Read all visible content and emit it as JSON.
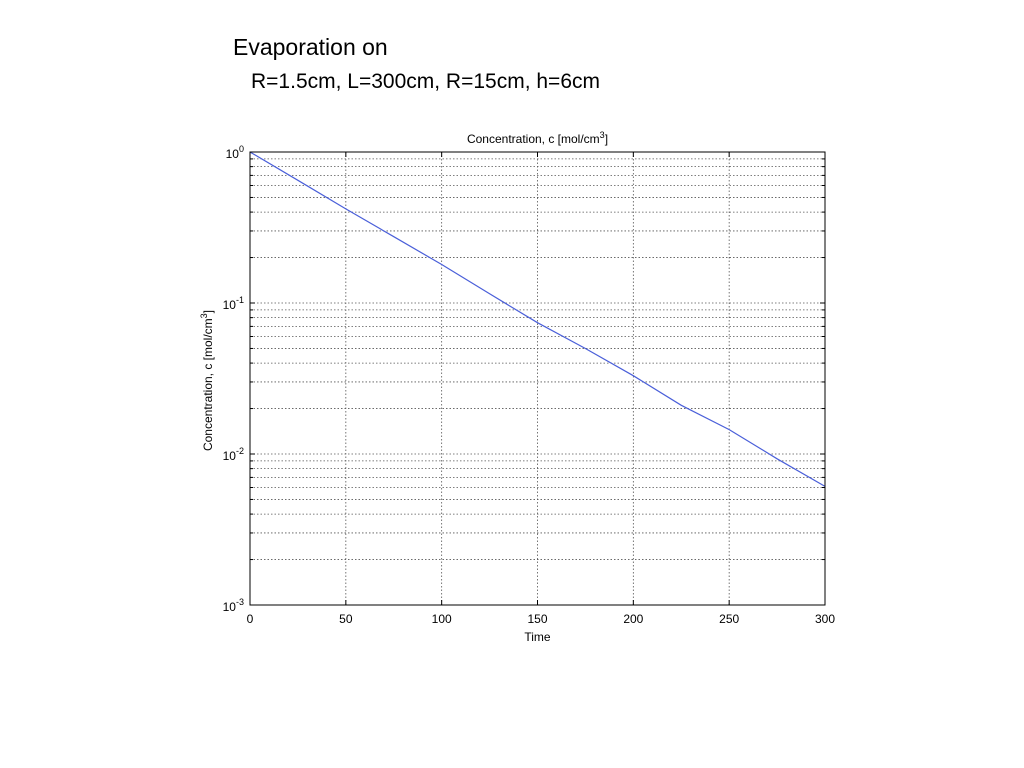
{
  "slide": {
    "title": "Evaporation on",
    "subtitle": "R=1.5cm, L=300cm, R=15cm, h=6cm"
  },
  "chart_data": {
    "type": "line",
    "title": "Concentration, c [mol/cm",
    "title_superscript": "3",
    "title_suffix": "]",
    "xlabel": "Time",
    "ylabel": "Concentration, c [mol/cm",
    "ylabel_superscript": "3",
    "ylabel_suffix": "]",
    "xlim": [
      0,
      300
    ],
    "ylim": [
      0.001,
      1
    ],
    "yscale": "log",
    "grid": true,
    "line_color": "#4a5fd9",
    "xticks": [
      0,
      50,
      100,
      150,
      200,
      250,
      300
    ],
    "yticks": [
      {
        "value": 1,
        "base": "10",
        "exp": "0"
      },
      {
        "value": 0.1,
        "base": "10",
        "exp": "-1"
      },
      {
        "value": 0.01,
        "base": "10",
        "exp": "-2"
      },
      {
        "value": 0.001,
        "base": "10",
        "exp": "-3"
      }
    ],
    "series": [
      {
        "x": [
          0,
          25,
          50,
          75,
          100,
          125,
          150,
          175,
          200,
          225,
          250,
          275,
          300
        ],
        "y": [
          1.0,
          0.65,
          0.42,
          0.275,
          0.18,
          0.115,
          0.074,
          0.05,
          0.033,
          0.021,
          0.0145,
          0.0093,
          0.0061
        ]
      }
    ]
  }
}
